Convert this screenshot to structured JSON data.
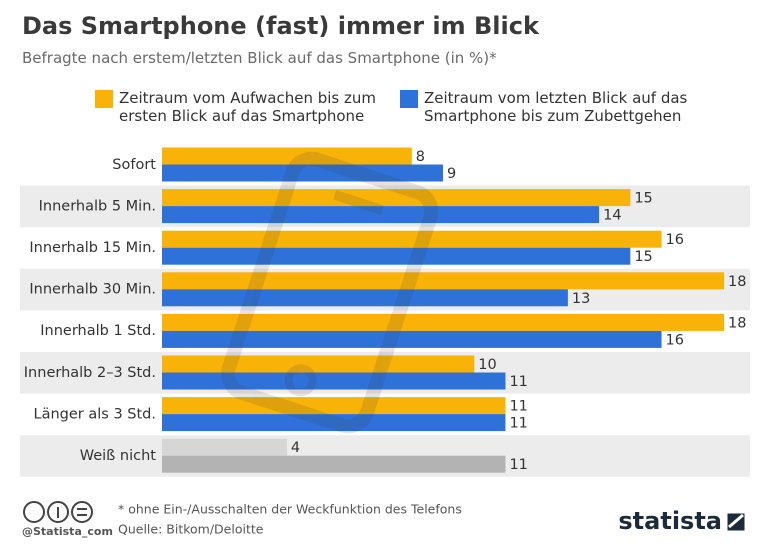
{
  "chart_data": {
    "type": "hbar",
    "title": "Das Smartphone (fast) immer im Blick",
    "subtitle": "Befragte nach erstem/letzten Blick auf das Smartphone (in %)*",
    "categories": [
      "Sofort",
      "Innerhalb 5 Min.",
      "Innerhalb 15 Min.",
      "Innerhalb 30 Min.",
      "Innerhalb 1 Std.",
      "Innerhalb 2–3 Std.",
      "Länger als 3 Std.",
      "Weiß nicht"
    ],
    "series": [
      {
        "name": "Zeitraum vom Aufwachen bis zum ersten Blick auf das Smartphone",
        "color": "#f9b208",
        "colors": [
          "#f9b208",
          "#f9b208",
          "#f9b208",
          "#f9b208",
          "#f9b208",
          "#f9b208",
          "#f9b208",
          "#d6d6d6"
        ],
        "values": [
          8,
          15,
          16,
          18,
          18,
          10,
          11,
          4
        ]
      },
      {
        "name": "Zeitraum vom letzten Blick auf das Smartphone bis zum Zubettgehen",
        "color": "#2e72d9",
        "colors": [
          "#2e72d9",
          "#2e72d9",
          "#2e72d9",
          "#2e72d9",
          "#2e72d9",
          "#2e72d9",
          "#2e72d9",
          "#b3b3b3"
        ],
        "values": [
          9,
          14,
          15,
          13,
          16,
          11,
          11,
          11
        ]
      }
    ],
    "footnote": "* ohne Ein-/Ausschalten der Weckfunktion des Telefons",
    "source": "Quelle: Bitkom/Deloitte",
    "handle": "@Statista_com",
    "logo": "statista"
  }
}
